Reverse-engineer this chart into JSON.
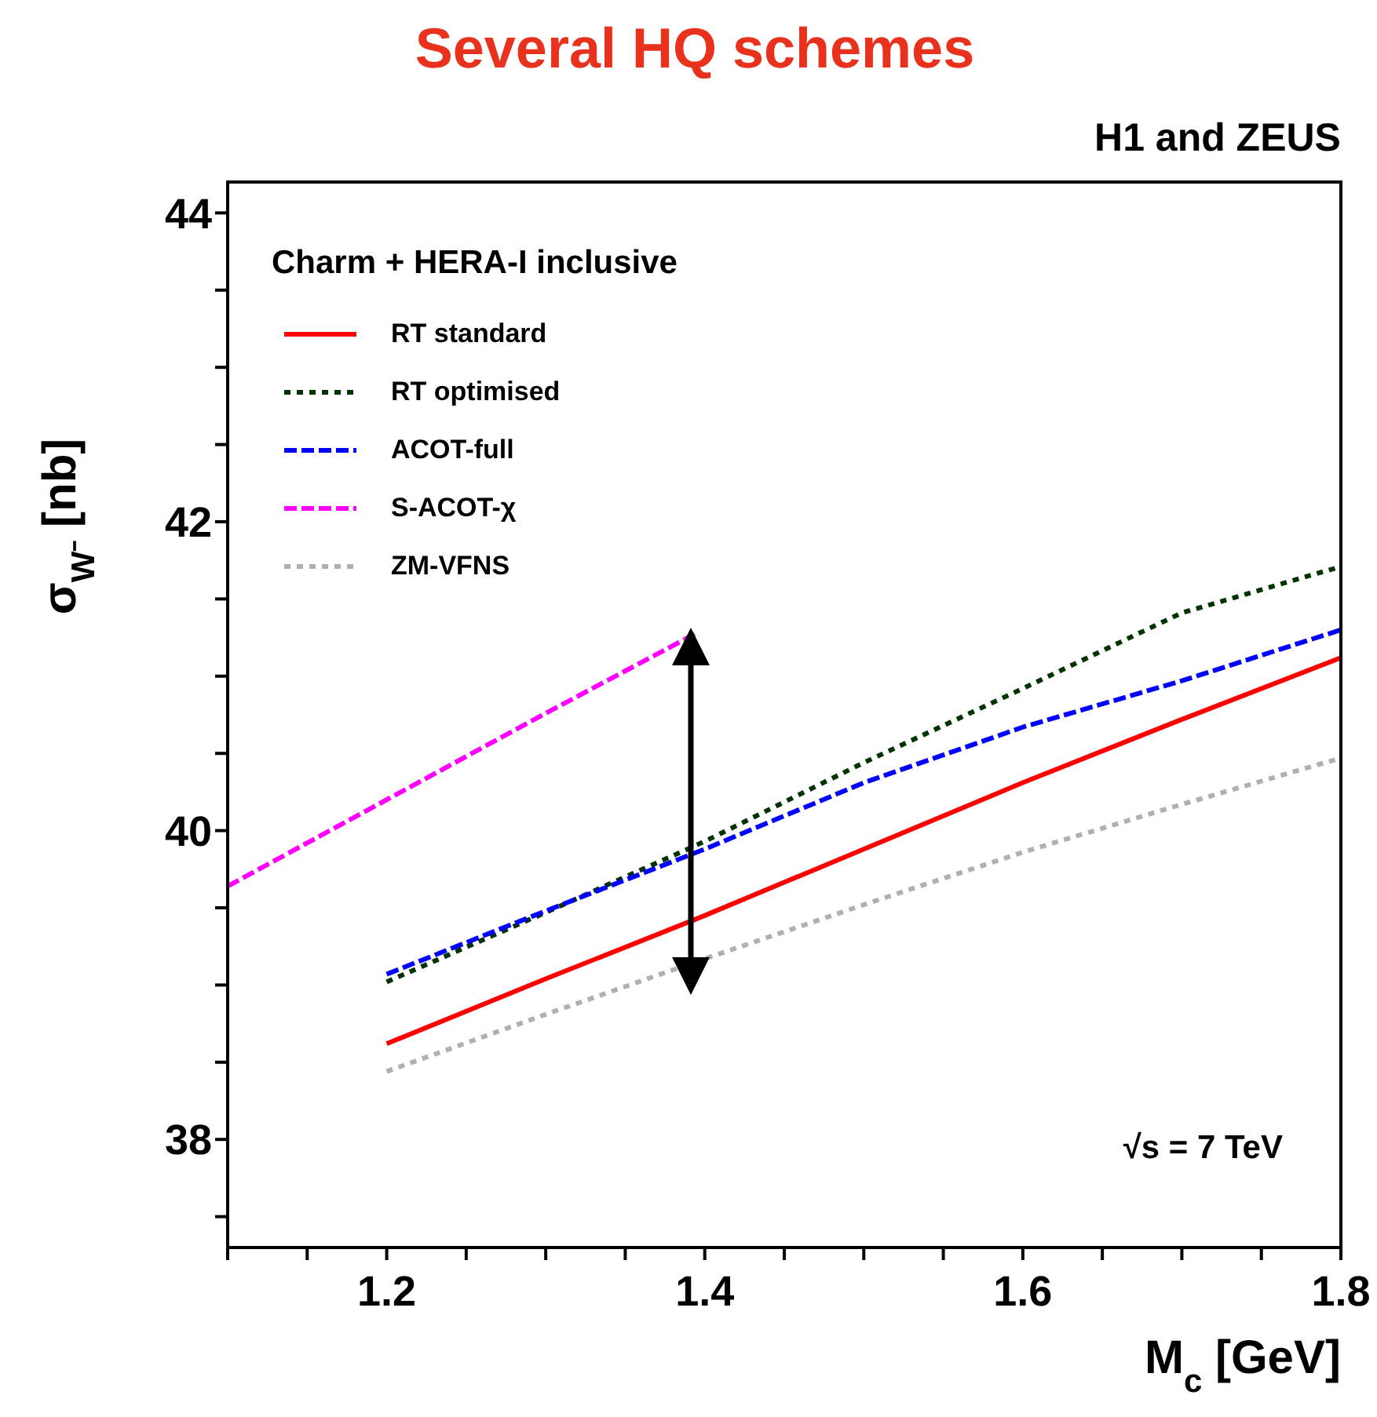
{
  "chart_data": {
    "type": "line",
    "title": "Several HQ schemes",
    "subtitle": "H1 and ZEUS",
    "xlabel": "M$_{c}$ [GeV]",
    "ylabel": "σ$_{W⁻}$ [nb]",
    "legend_title": "Charm + HERA-I inclusive",
    "annotations": [
      "√s = 7 TeV"
    ],
    "xlim": [
      1.1,
      1.8
    ],
    "ylim": [
      37.3,
      44.2
    ],
    "xticks": [
      {
        "value": 1.1,
        "label": null
      },
      {
        "value": 1.15,
        "label": null
      },
      1.2,
      {
        "value": 1.25,
        "label": null
      },
      {
        "value": 1.3,
        "label": null
      },
      {
        "value": 1.35,
        "label": null
      },
      1.4,
      {
        "value": 1.45,
        "label": null
      },
      {
        "value": 1.5,
        "label": null
      },
      {
        "value": 1.55,
        "label": null
      },
      1.6,
      {
        "value": 1.65,
        "label": null
      },
      {
        "value": 1.7,
        "label": null
      },
      {
        "value": 1.75,
        "label": null
      },
      1.8
    ],
    "yticks": [
      {
        "value": 37.5,
        "label": null
      },
      38,
      {
        "value": 38.5,
        "label": null
      },
      {
        "value": 39,
        "label": null
      },
      {
        "value": 39.5,
        "label": null
      },
      40,
      {
        "value": 40.5,
        "label": null
      },
      {
        "value": 41,
        "label": null
      },
      {
        "value": 41.5,
        "label": null
      },
      42,
      {
        "value": 42.5,
        "label": null
      },
      {
        "value": 43,
        "label": null
      },
      {
        "value": 43.5,
        "label": null
      },
      44
    ],
    "grid": false,
    "legend": "top left",
    "marker": "none",
    "series": [
      {
        "name": "RT standard",
        "color": "#ff0000",
        "line_style": "solid",
        "x": [
          1.2,
          1.3,
          1.4,
          1.5,
          1.6,
          1.7,
          1.8
        ],
        "values": [
          38.62,
          39.04,
          39.45,
          39.88,
          40.31,
          40.72,
          41.12
        ]
      },
      {
        "name": "RT optimised",
        "color": "#003300",
        "line_style": "dotted",
        "x": [
          1.2,
          1.3,
          1.4,
          1.5,
          1.6,
          1.7,
          1.8
        ],
        "values": [
          39.02,
          39.47,
          39.93,
          40.44,
          40.92,
          41.41,
          41.71
        ]
      },
      {
        "name": "ACOT-full",
        "color": "#0000ff",
        "line_style": "dashed",
        "x": [
          1.2,
          1.3,
          1.4,
          1.5,
          1.6,
          1.7,
          1.8
        ],
        "values": [
          39.07,
          39.48,
          39.88,
          40.31,
          40.67,
          40.97,
          41.3
        ]
      },
      {
        "name": "S-ACOT-χ",
        "color": "#ff00ff",
        "line_style": "dashed",
        "x": [
          1.1,
          1.2,
          1.3,
          1.395
        ],
        "values": [
          39.64,
          40.2,
          40.76,
          41.28
        ]
      },
      {
        "name": "ZM-VFNS",
        "color": "#b0b0b0",
        "line_style": "dotted",
        "x": [
          1.2,
          1.3,
          1.4,
          1.5,
          1.6,
          1.7,
          1.8
        ],
        "values": [
          38.44,
          38.81,
          39.17,
          39.52,
          39.86,
          40.17,
          40.47
        ]
      }
    ]
  }
}
